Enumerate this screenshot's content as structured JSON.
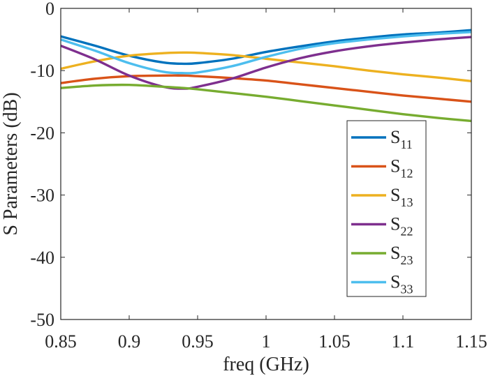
{
  "chart_data": {
    "type": "line",
    "title": "",
    "xlabel": "freq (GHz)",
    "ylabel": "S Parameters (dB)",
    "xlim": [
      0.85,
      1.15
    ],
    "ylim": [
      -50,
      0
    ],
    "x_ticks": [
      0.85,
      0.9,
      0.95,
      1,
      1.05,
      1.1,
      1.15
    ],
    "x_tick_labels": [
      "0.85",
      "0.9",
      "0.95",
      "1",
      "1.05",
      "1.1",
      "1.15"
    ],
    "y_ticks": [
      -50,
      -40,
      -30,
      -20,
      -10,
      0
    ],
    "y_tick_labels": [
      "-50",
      "-40",
      "-30",
      "-20",
      "-10",
      "0"
    ],
    "grid": false,
    "legend_position": "right",
    "x": [
      0.85,
      0.875,
      0.9,
      0.925,
      0.94,
      0.95,
      0.975,
      1.0,
      1.025,
      1.05,
      1.075,
      1.1,
      1.125,
      1.15
    ],
    "series": [
      {
        "name": "S11",
        "main": "S",
        "sub": "11",
        "color": "#0072BD",
        "values": [
          -4.5,
          -6.0,
          -7.6,
          -8.7,
          -8.9,
          -8.8,
          -8.1,
          -7.0,
          -6.1,
          -5.3,
          -4.7,
          -4.2,
          -3.9,
          -3.5
        ]
      },
      {
        "name": "S12",
        "main": "S",
        "sub": "12",
        "color": "#D95319",
        "values": [
          -12.0,
          -11.3,
          -10.9,
          -10.8,
          -10.8,
          -10.9,
          -11.2,
          -11.6,
          -12.2,
          -12.8,
          -13.4,
          -14.0,
          -14.5,
          -15.0
        ]
      },
      {
        "name": "S13",
        "main": "S",
        "sub": "13",
        "color": "#EDB120",
        "values": [
          -9.7,
          -8.5,
          -7.6,
          -7.2,
          -7.1,
          -7.15,
          -7.5,
          -8.1,
          -8.7,
          -9.3,
          -10.0,
          -10.6,
          -11.1,
          -11.7
        ]
      },
      {
        "name": "S22",
        "main": "S",
        "sub": "22",
        "color": "#7E2F8E",
        "values": [
          -6.0,
          -8.2,
          -10.8,
          -12.6,
          -12.9,
          -12.6,
          -11.3,
          -9.5,
          -8.0,
          -6.9,
          -6.1,
          -5.5,
          -5.0,
          -4.6
        ]
      },
      {
        "name": "S23",
        "main": "S",
        "sub": "23",
        "color": "#77AC30",
        "values": [
          -12.8,
          -12.4,
          -12.3,
          -12.6,
          -12.8,
          -13.0,
          -13.6,
          -14.2,
          -14.9,
          -15.6,
          -16.3,
          -17.0,
          -17.6,
          -18.1
        ]
      },
      {
        "name": "S33",
        "main": "S",
        "sub": "33",
        "color": "#4DBEEE",
        "values": [
          -5.0,
          -6.8,
          -8.8,
          -10.2,
          -10.4,
          -10.3,
          -9.3,
          -7.8,
          -6.5,
          -5.6,
          -5.0,
          -4.5,
          -4.1,
          -3.8
        ]
      }
    ]
  }
}
